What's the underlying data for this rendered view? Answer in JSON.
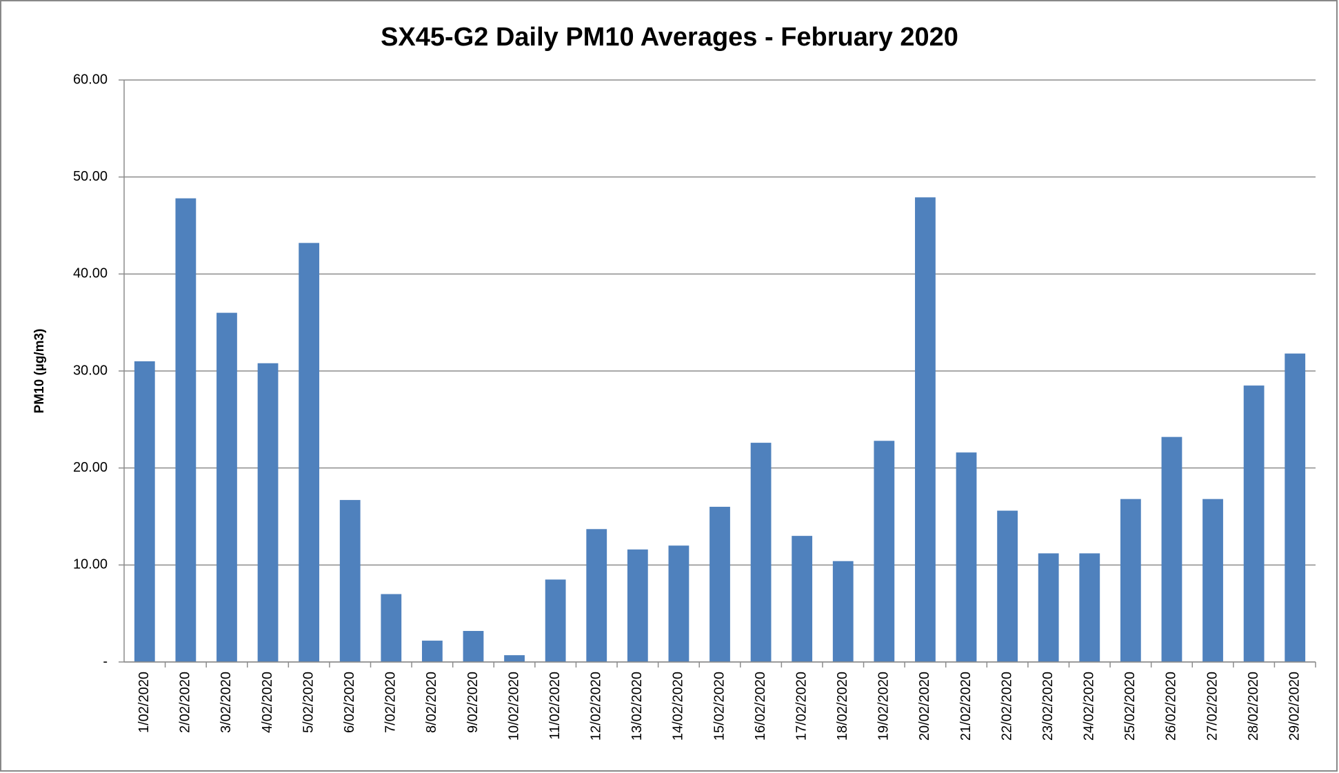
{
  "chart_data": {
    "type": "bar",
    "title": "SX45-G2 Daily PM10 Averages - February 2020",
    "y_label": "PM10 (µg/m3)",
    "categories": [
      "1/02/2020",
      "2/02/2020",
      "3/02/2020",
      "4/02/2020",
      "5/02/2020",
      "6/02/2020",
      "7/02/2020",
      "8/02/2020",
      "9/02/2020",
      "10/02/2020",
      "11/02/2020",
      "12/02/2020",
      "13/02/2020",
      "14/02/2020",
      "15/02/2020",
      "16/02/2020",
      "17/02/2020",
      "18/02/2020",
      "19/02/2020",
      "20/02/2020",
      "21/02/2020",
      "22/02/2020",
      "23/02/2020",
      "24/02/2020",
      "25/02/2020",
      "26/02/2020",
      "27/02/2020",
      "28/02/2020",
      "29/02/2020"
    ],
    "values": [
      31.0,
      47.8,
      36.0,
      30.8,
      43.2,
      16.7,
      7.0,
      2.2,
      3.2,
      0.7,
      8.5,
      13.7,
      11.6,
      12.0,
      16.0,
      22.6,
      13.0,
      10.4,
      22.8,
      47.9,
      21.6,
      15.6,
      11.2,
      11.2,
      16.8,
      23.2,
      16.8,
      28.5,
      31.8
    ],
    "color": "#4f81bd",
    "ylim": [
      0,
      60
    ],
    "yticks": [
      {
        "value": 0,
        "label": "-"
      },
      {
        "value": 10,
        "label": "10.00"
      },
      {
        "value": 20,
        "label": "20.00"
      },
      {
        "value": 30,
        "label": "30.00"
      },
      {
        "value": 40,
        "label": "40.00"
      },
      {
        "value": 50,
        "label": "50.00"
      },
      {
        "value": 60,
        "label": "60.00"
      }
    ],
    "grid": true
  }
}
